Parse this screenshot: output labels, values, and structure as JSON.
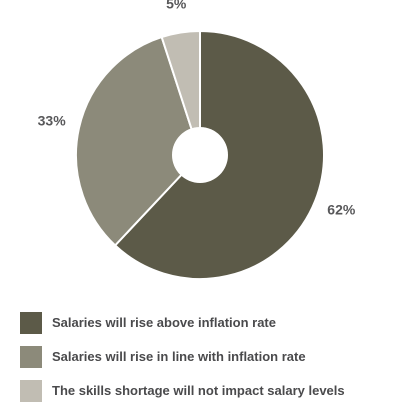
{
  "chart_data": {
    "type": "pie",
    "donut": true,
    "slices": [
      {
        "label": "Salaries will rise above inflation rate",
        "value": 62,
        "display": "62%",
        "color": "#5c5a48"
      },
      {
        "label": "Salaries will rise in line with inflation rate",
        "value": 33,
        "display": "33%",
        "color": "#8c8a7a"
      },
      {
        "label": "The skills shortage will not impact salary levels",
        "value": 5,
        "display": "5%",
        "color": "#c1bdb3"
      }
    ],
    "legend_position": "bottom"
  }
}
